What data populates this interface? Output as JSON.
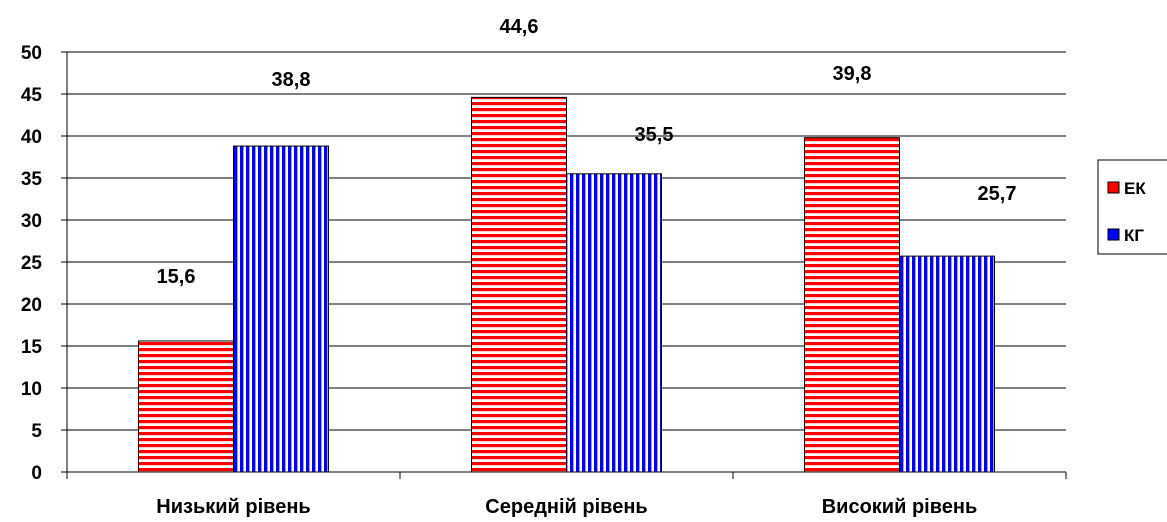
{
  "chart_data": {
    "type": "bar",
    "categories": [
      "Низький рівень",
      "Середній рівень",
      "Високий рівень"
    ],
    "series": [
      {
        "name": "ЕК",
        "values": [
          15.6,
          44.6,
          39.8
        ],
        "color": "#ff0000",
        "pattern": "horizontal-stripes"
      },
      {
        "name": "КГ",
        "values": [
          38.8,
          35.5,
          25.7
        ],
        "color": "#0000ff",
        "pattern": "vertical-stripes"
      }
    ],
    "data_labels": [
      [
        "15,6",
        "44,6",
        "39,8"
      ],
      [
        "38,8",
        "35,5",
        "25,7"
      ]
    ],
    "y_ticks": [
      "0",
      "5",
      "10",
      "15",
      "20",
      "25",
      "30",
      "35",
      "40",
      "45",
      "50"
    ],
    "ylim": [
      0,
      50
    ],
    "grid": true,
    "legend_position": "right"
  }
}
